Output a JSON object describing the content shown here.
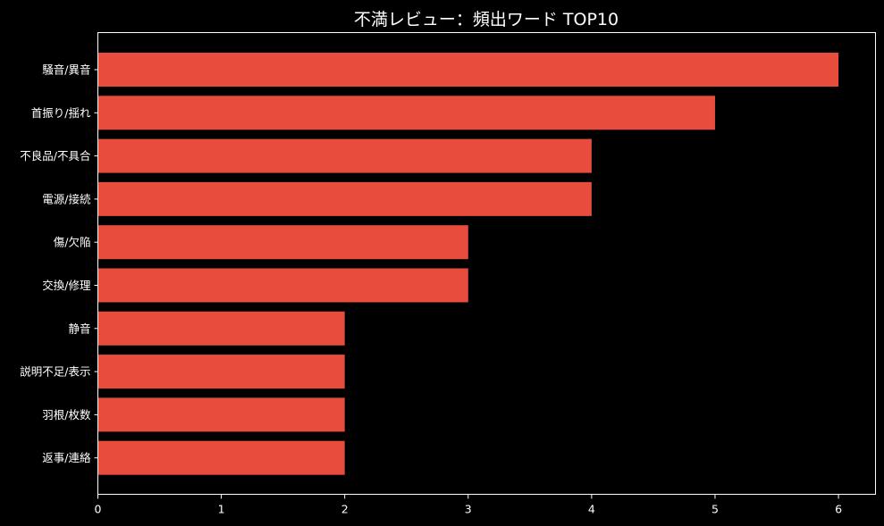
{
  "chart_data": {
    "type": "bar",
    "orientation": "horizontal",
    "title": "不満レビュー：頻出ワード TOP10",
    "xlabel": "",
    "ylabel": "",
    "categories": [
      "騒音/異音",
      "首振り/揺れ",
      "不良品/不具合",
      "電源/接続",
      "傷/欠陥",
      "交換/修理",
      "静音",
      "説明不足/表示",
      "羽根/枚数",
      "返事/連絡"
    ],
    "values": [
      6,
      5,
      4,
      4,
      3,
      3,
      2,
      2,
      2,
      2
    ],
    "xlim": [
      0,
      6.3
    ],
    "xticks": [
      "0",
      "1",
      "2",
      "3",
      "4",
      "5",
      "6"
    ],
    "grid": false,
    "colors": {
      "bar": "#e84c3d",
      "background": "#000000",
      "axis": "#ffffff",
      "text": "#ffffff"
    }
  }
}
